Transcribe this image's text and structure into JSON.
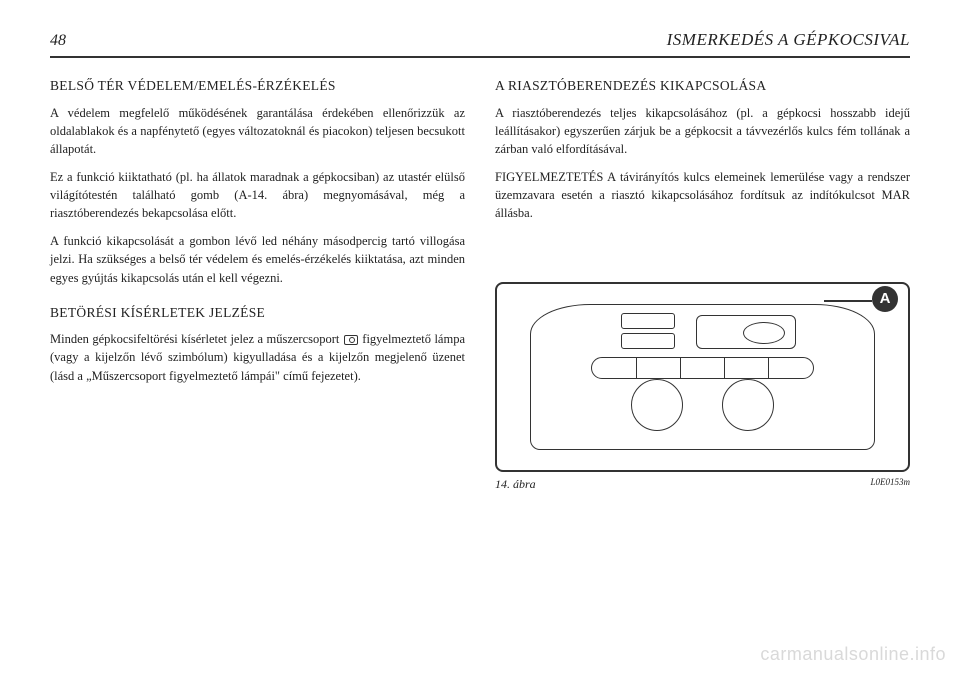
{
  "page_number": "48",
  "header_title": "ISMERKEDÉS A GÉPKOCSIVAL",
  "left": {
    "s1_title": "BELSŐ TÉR VÉDELEM/EMELÉS-ÉRZÉKELÉS",
    "s1_p1": "A védelem megfelelő működésének garantálása érdekében ellenőrizzük az oldalablakok és a napfénytető (egyes változatoknál és piacokon) teljesen becsukott állapotát.",
    "s1_p2": "Ez a funkció kiiktatható (pl. ha állatok maradnak a gépkocsiban) az utastér elülső világítótestén található gomb (A-14. ábra) megnyomásával, még a riasztóberendezés bekapcsolása előtt.",
    "s1_p3": "A funkció kikapcsolását a gombon lévő led néhány másodpercig tartó villogása jelzi. Ha szükséges a belső tér védelem és emelés-érzékelés kiiktatása, azt minden egyes gyújtás kikapcsolás után el kell végezni.",
    "s2_title": "BETÖRÉSI KÍSÉRLETEK JELZÉSE",
    "s2_p1a": "Minden gépkocsifeltörési kísérletet jelez a műszercsoport ",
    "s2_p1b": " figyelmeztető lámpa (vagy a kijelzőn lévő szimbólum) kigyulladása és a kijelzőn megjelenő üzenet (lásd a „Műszercsoport figyelmeztető lámpái\" című fejezetet)."
  },
  "right": {
    "s3_title": "A RIASZTÓBERENDEZÉS KIKAPCSOLÁSA",
    "s3_p1": "A riasztóberendezés teljes kikapcsolásához (pl. a gépkocsi hosszabb idejű leállításakor) egyszerűen zárjuk be a gépkocsit a távvezérlős kulcs fém tollának a zárban való elfordításával.",
    "s3_p2": "FIGYELMEZTETÉS A távirányítós kulcs elemeinek lemerülése vagy a rendszer üzemzavara esetén a riasztó kikapcsolásához fordítsuk az indítókulcsot MAR állásba."
  },
  "figure": {
    "label": "A",
    "caption": "14. ábra",
    "code": "L0E0153m"
  },
  "watermark": "carmanualsonline.info",
  "colors": {
    "text": "#222222",
    "rule": "#333333",
    "watermark": "#d9d9d9",
    "background": "#ffffff"
  },
  "typography": {
    "body_size_pt": 10,
    "title_size_pt": 11,
    "header_size_pt": 13,
    "family": "serif"
  }
}
